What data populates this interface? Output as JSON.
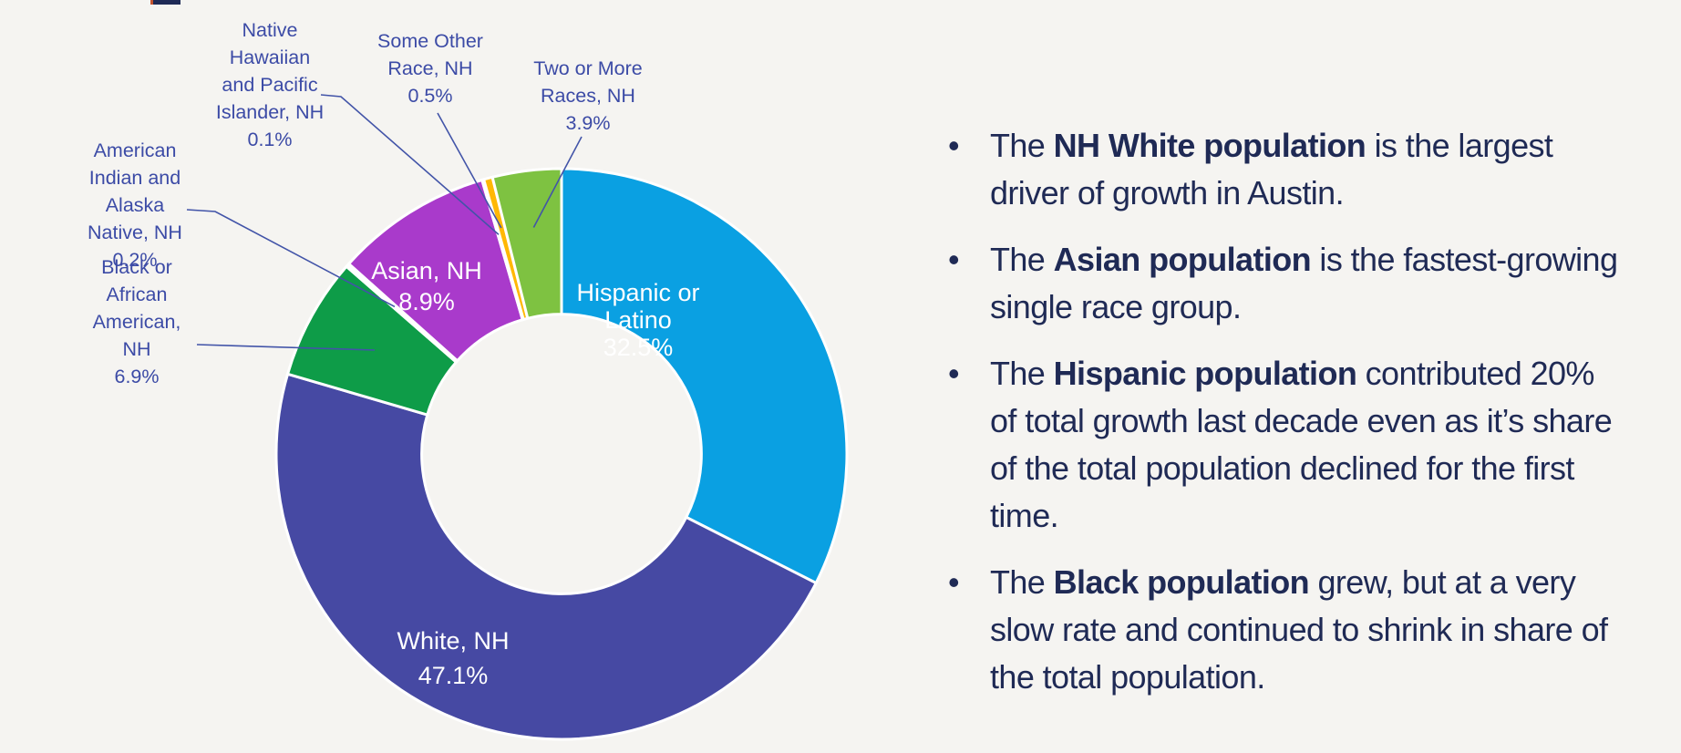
{
  "page": {
    "background_color": "#F5F4F1",
    "cropped_title_fragment": "partial letter descender of slide title (cut off at top edge)",
    "bullet_char": "•",
    "text_color": "#1F2A55"
  },
  "chart_data": {
    "type": "pie",
    "subtype": "donut",
    "title": "",
    "units": "%",
    "hole_ratio": 0.49,
    "start_angle_deg": 0,
    "direction": "clockwise",
    "separator_color": "#FFFFFF",
    "inside_label_color": "#FFFFFF",
    "outside_label_color": "#3C4BA6",
    "leader_line_color": "#4254A8",
    "categories": [
      "Hispanic or Latino",
      "White, NH",
      "Black or African American, NH",
      "American Indian and Alaska Native, NH",
      "Asian, NH",
      "Native Hawaiian and Pacific Islander, NH",
      "Some Other Race, NH",
      "Two or More Races, NH"
    ],
    "values": [
      32.5,
      47.1,
      6.9,
      0.2,
      8.9,
      0.1,
      0.5,
      3.9
    ],
    "segments": [
      {
        "label": "Hispanic or Latino",
        "label_lines": [
          "Hispanic or",
          "Latino"
        ],
        "value": 32.5,
        "value_label": "32.5%",
        "color": "#0AA0E2",
        "label_position": "inside"
      },
      {
        "label": "White, NH",
        "label_lines": [
          "White, NH"
        ],
        "value": 47.1,
        "value_label": "47.1%",
        "color": "#4649A3",
        "label_position": "inside"
      },
      {
        "label": "Black or African American, NH",
        "label_lines": [
          "Black or",
          "African",
          "American,",
          "NH"
        ],
        "value": 6.9,
        "value_label": "6.9%",
        "color": "#0E9C48",
        "label_position": "outside"
      },
      {
        "label": "American Indian and Alaska Native, NH",
        "label_lines": [
          "American",
          "Indian and",
          "Alaska",
          "Native, NH"
        ],
        "value": 0.2,
        "value_label": "0.2%",
        "color": "#FFFFFF",
        "label_position": "outside"
      },
      {
        "label": "Asian, NH",
        "label_lines": [
          "Asian, NH"
        ],
        "value": 8.9,
        "value_label": "8.9%",
        "color": "#A93ACB",
        "label_position": "inside"
      },
      {
        "label": "Native Hawaiian and Pacific Islander, NH",
        "label_lines": [
          "Native",
          "Hawaiian",
          "and Pacific",
          "Islander, NH"
        ],
        "value": 0.1,
        "value_label": "0.1%",
        "color": "#FFFFFF",
        "label_position": "outside"
      },
      {
        "label": "Some Other Race, NH",
        "label_lines": [
          "Some Other",
          "Race, NH"
        ],
        "value": 0.5,
        "value_label": "0.5%",
        "color": "#FFB805",
        "label_position": "outside"
      },
      {
        "label": "Two or More Races, NH",
        "label_lines": [
          "Two or More",
          "Races, NH"
        ],
        "value": 3.9,
        "value_label": "3.9%",
        "color": "#7EC241",
        "label_position": "outside"
      }
    ]
  },
  "bullets": {
    "items": [
      {
        "segments": [
          {
            "text": "The ",
            "bold": false
          },
          {
            "text": "NH White population",
            "bold": true
          },
          {
            "text": " is the largest driver of growth in Austin.",
            "bold": false
          }
        ]
      },
      {
        "segments": [
          {
            "text": "The ",
            "bold": false
          },
          {
            "text": "Asian population",
            "bold": true
          },
          {
            "text": " is the fastest-growing single race group.",
            "bold": false
          }
        ]
      },
      {
        "segments": [
          {
            "text": "The ",
            "bold": false
          },
          {
            "text": "Hispanic population",
            "bold": true
          },
          {
            "text": " contributed 20% of total growth last decade even as it’s share of the total population declined for the first time.",
            "bold": false
          }
        ]
      },
      {
        "segments": [
          {
            "text": "The ",
            "bold": false
          },
          {
            "text": "Black population",
            "bold": true
          },
          {
            "text": " grew, but at a very slow rate and continued to shrink in share of the total population.",
            "bold": false
          }
        ]
      }
    ]
  }
}
